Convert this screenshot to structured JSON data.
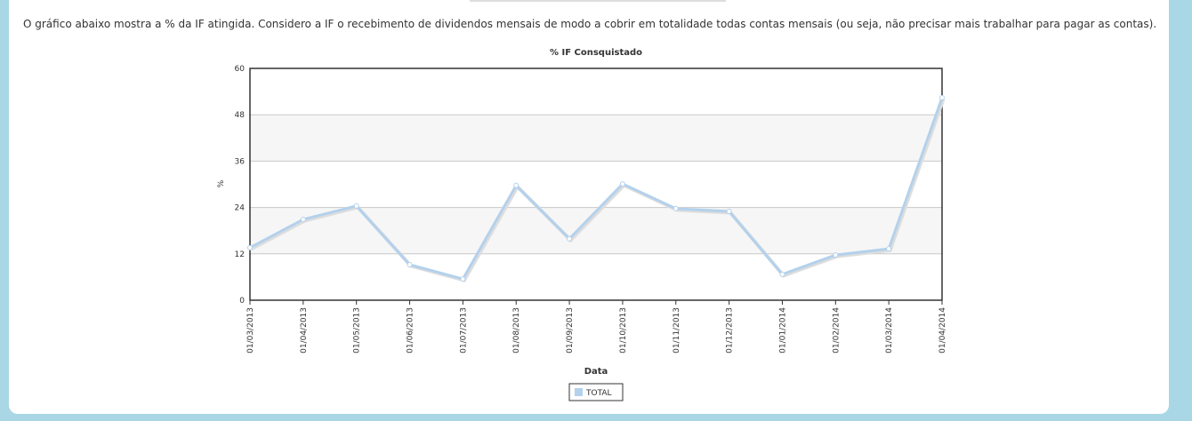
{
  "page": {
    "intro": "O gráfico abaixo mostra a % da IF atingida. Considero a IF o recebimento de dividendos mensais de modo a cobrir em totalidade todas contas mensais (ou seja, não precisar mais trabalhar para pagar as contas)."
  },
  "chart_data": {
    "type": "line",
    "title": "% IF Consquistado",
    "x_label": "Data",
    "y_label": "%",
    "categories": [
      "01/03/2013",
      "01/04/2013",
      "01/05/2013",
      "01/06/2013",
      "01/07/2013",
      "01/08/2013",
      "01/09/2013",
      "01/10/2013",
      "01/11/2013",
      "01/12/2013",
      "01/01/2014",
      "01/02/2014",
      "01/03/2014",
      "01/04/2014"
    ],
    "series": [
      {
        "name": "TOTAL",
        "color": "#b3d1ec",
        "values": [
          13.6,
          20.9,
          24.4,
          9.2,
          5.5,
          29.7,
          15.9,
          30.1,
          23.7,
          23.0,
          6.7,
          11.7,
          13.3,
          52.4
        ]
      }
    ],
    "ylim": [
      0,
      60
    ],
    "yticks": [
      0,
      12,
      24,
      36,
      48,
      60
    ],
    "grid": true
  }
}
